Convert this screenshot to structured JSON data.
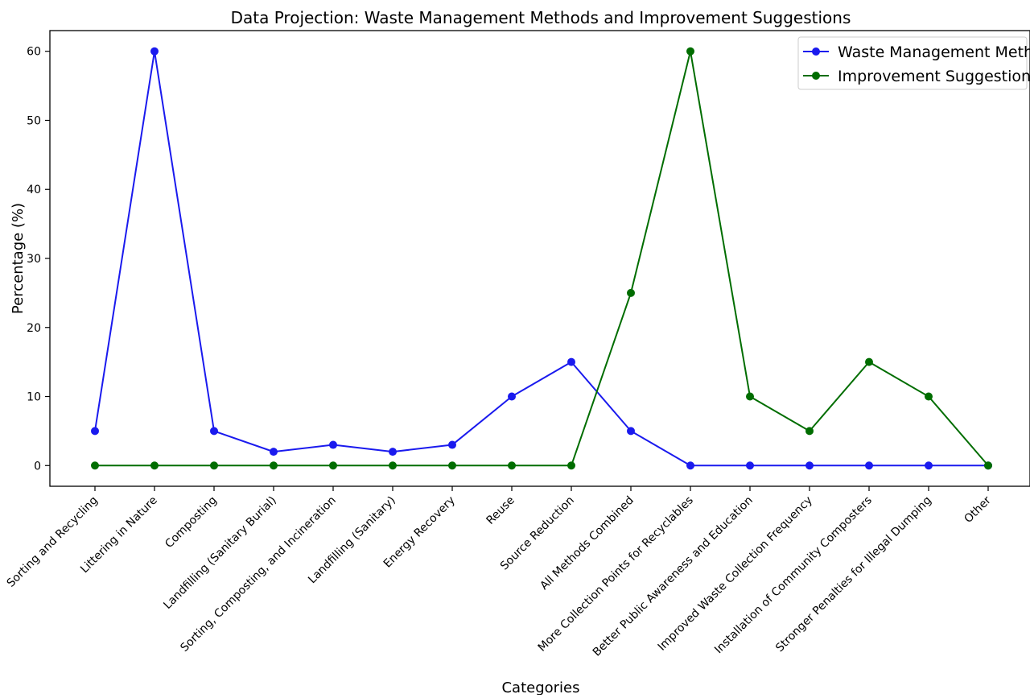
{
  "chart_data": {
    "type": "line",
    "title": "Data Projection: Waste Management Methods and Improvement Suggestions",
    "xlabel": "Categories",
    "ylabel": "Percentage (%)",
    "categories": [
      "Sorting and Recycling",
      "Littering in Nature",
      "Composting",
      "Landfilling (Sanitary Burial)",
      "Sorting, Composting, and Incineration",
      "Landfilling (Sanitary)",
      "Energy Recovery",
      "Reuse",
      "Source Reduction",
      "All Methods Combined",
      "More Collection Points for Recyclables",
      "Better Public Awareness and Education",
      "Improved Waste Collection Frequency",
      "Installation of Community Composters",
      "Stronger Penalties for Illegal Dumping",
      "Other"
    ],
    "series": [
      {
        "name": "Waste Management Methods",
        "color": "#1a1aee",
        "marker": "circle",
        "values": [
          5,
          60,
          5,
          2,
          3,
          2,
          3,
          10,
          15,
          5,
          0,
          0,
          0,
          0,
          0,
          0
        ]
      },
      {
        "name": "Improvement Suggestions",
        "color": "#006d00",
        "marker": "circle",
        "values": [
          0,
          0,
          0,
          0,
          0,
          0,
          0,
          0,
          0,
          25,
          60,
          10,
          5,
          15,
          10,
          0
        ]
      }
    ],
    "ylim": [
      -3,
      63
    ],
    "yticks": [
      0,
      10,
      20,
      30,
      40,
      50,
      60
    ],
    "grid": false,
    "legend_position": "upper right"
  }
}
